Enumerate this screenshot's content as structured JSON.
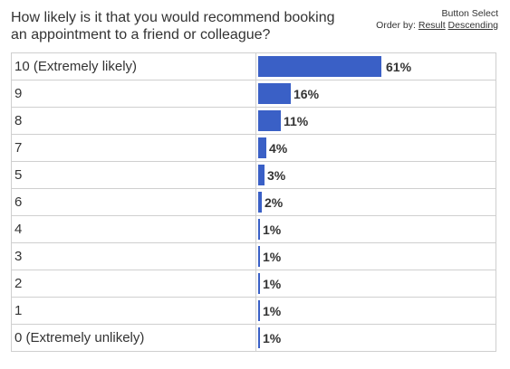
{
  "question": {
    "line1": "How likely is it that you would recommend booking",
    "line2": "an appointment to a friend or colleague?"
  },
  "controls": {
    "title": "Button Select",
    "order_by_label": "Order by:",
    "result_link": "Result",
    "descending_link": "Descending"
  },
  "chart_data": {
    "type": "bar",
    "orientation": "horizontal",
    "title": "How likely is it that you would recommend booking an appointment to a friend or colleague?",
    "categories": [
      "10 (Extremely likely)",
      "9",
      "8",
      "7",
      "5",
      "6",
      "4",
      "3",
      "2",
      "1",
      "0 (Extremely unlikely)"
    ],
    "values": [
      61,
      16,
      11,
      4,
      3,
      2,
      1,
      1,
      1,
      1,
      1
    ],
    "value_labels": [
      "61%",
      "16%",
      "11%",
      "4%",
      "3%",
      "2%",
      "1%",
      "1%",
      "1%",
      "1%",
      "1%"
    ],
    "unit": "%",
    "xlim": [
      0,
      100
    ],
    "bar_color": "#3a60c6"
  }
}
